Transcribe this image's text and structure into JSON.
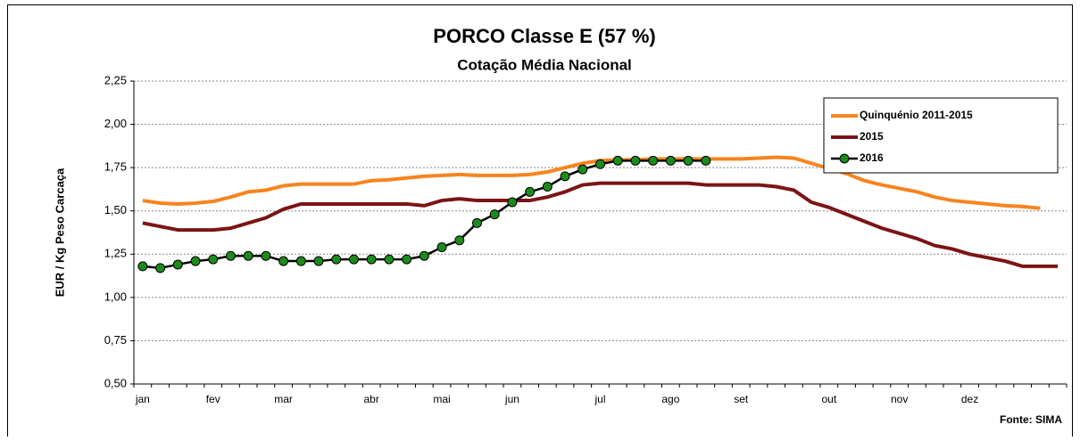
{
  "chart_data": {
    "type": "line",
    "title": "PORCO Classe E (57 %)",
    "subtitle": "Cotação Média Nacional",
    "y_label": "EUR / Kg Peso Carcaça",
    "source": "Fonte: SIMA",
    "categories": [
      "jan",
      null,
      null,
      null,
      "fev",
      null,
      null,
      null,
      "mar",
      null,
      null,
      null,
      null,
      "abr",
      null,
      null,
      null,
      "mai",
      null,
      null,
      null,
      "jun",
      null,
      null,
      null,
      null,
      "jul",
      null,
      null,
      null,
      "ago",
      null,
      null,
      null,
      "set",
      null,
      null,
      null,
      null,
      "out",
      null,
      null,
      null,
      "nov",
      null,
      null,
      null,
      "dez",
      null,
      null,
      null,
      null,
      null
    ],
    "ylim": [
      0.5,
      2.25
    ],
    "yticks": [
      {
        "value": 0.5,
        "label": "0,50"
      },
      {
        "value": 0.75,
        "label": "0,75"
      },
      {
        "value": 1.0,
        "label": "1,00"
      },
      {
        "value": 1.25,
        "label": "1,25"
      },
      {
        "value": 1.5,
        "label": "1,50"
      },
      {
        "value": 1.75,
        "label": "1,75"
      },
      {
        "value": 2.0,
        "label": "2,00"
      },
      {
        "value": 2.25,
        "label": "2,25"
      }
    ],
    "grid": true,
    "legend": "top-right",
    "series": [
      {
        "name": "Quinquénio 2011-2015",
        "color": "#f7841f",
        "marker": false,
        "values": [
          1.56,
          1.545,
          1.54,
          1.545,
          1.555,
          1.58,
          1.61,
          1.62,
          1.645,
          1.655,
          1.655,
          1.655,
          1.655,
          1.675,
          1.68,
          1.69,
          1.7,
          1.705,
          1.71,
          1.705,
          1.705,
          1.705,
          1.71,
          1.725,
          1.75,
          1.775,
          1.79,
          1.795,
          1.795,
          1.8,
          1.8,
          1.8,
          1.8,
          1.8,
          1.8,
          1.805,
          1.81,
          1.805,
          1.775,
          1.745,
          1.715,
          1.675,
          1.65,
          1.63,
          1.61,
          1.58,
          1.56,
          1.55,
          1.54,
          1.53,
          1.525,
          1.515,
          null
        ]
      },
      {
        "name": "2015",
        "color": "#7b1416",
        "marker": false,
        "values": [
          1.43,
          1.41,
          1.39,
          1.39,
          1.39,
          1.4,
          1.43,
          1.46,
          1.51,
          1.54,
          1.54,
          1.54,
          1.54,
          1.54,
          1.54,
          1.54,
          1.53,
          1.56,
          1.57,
          1.56,
          1.56,
          1.56,
          1.56,
          1.58,
          1.61,
          1.65,
          1.66,
          1.66,
          1.66,
          1.66,
          1.66,
          1.66,
          1.65,
          1.65,
          1.65,
          1.65,
          1.64,
          1.62,
          1.55,
          1.52,
          1.48,
          1.44,
          1.4,
          1.37,
          1.34,
          1.3,
          1.28,
          1.25,
          1.23,
          1.21,
          1.18,
          1.18,
          1.18
        ]
      },
      {
        "name": "2016",
        "color": "#000000",
        "marker": true,
        "marker_color": "#1d8a1d",
        "values": [
          1.18,
          1.17,
          1.19,
          1.21,
          1.22,
          1.24,
          1.24,
          1.24,
          1.21,
          1.21,
          1.21,
          1.22,
          1.22,
          1.22,
          1.22,
          1.22,
          1.24,
          1.29,
          1.33,
          1.43,
          1.48,
          1.55,
          1.61,
          1.64,
          1.7,
          1.74,
          1.77,
          1.79,
          1.79,
          1.79,
          1.79,
          1.79,
          1.79,
          null,
          null,
          null,
          null,
          null,
          null,
          null,
          null,
          null,
          null,
          null,
          null,
          null,
          null,
          null,
          null,
          null,
          null,
          null,
          null
        ]
      }
    ]
  }
}
